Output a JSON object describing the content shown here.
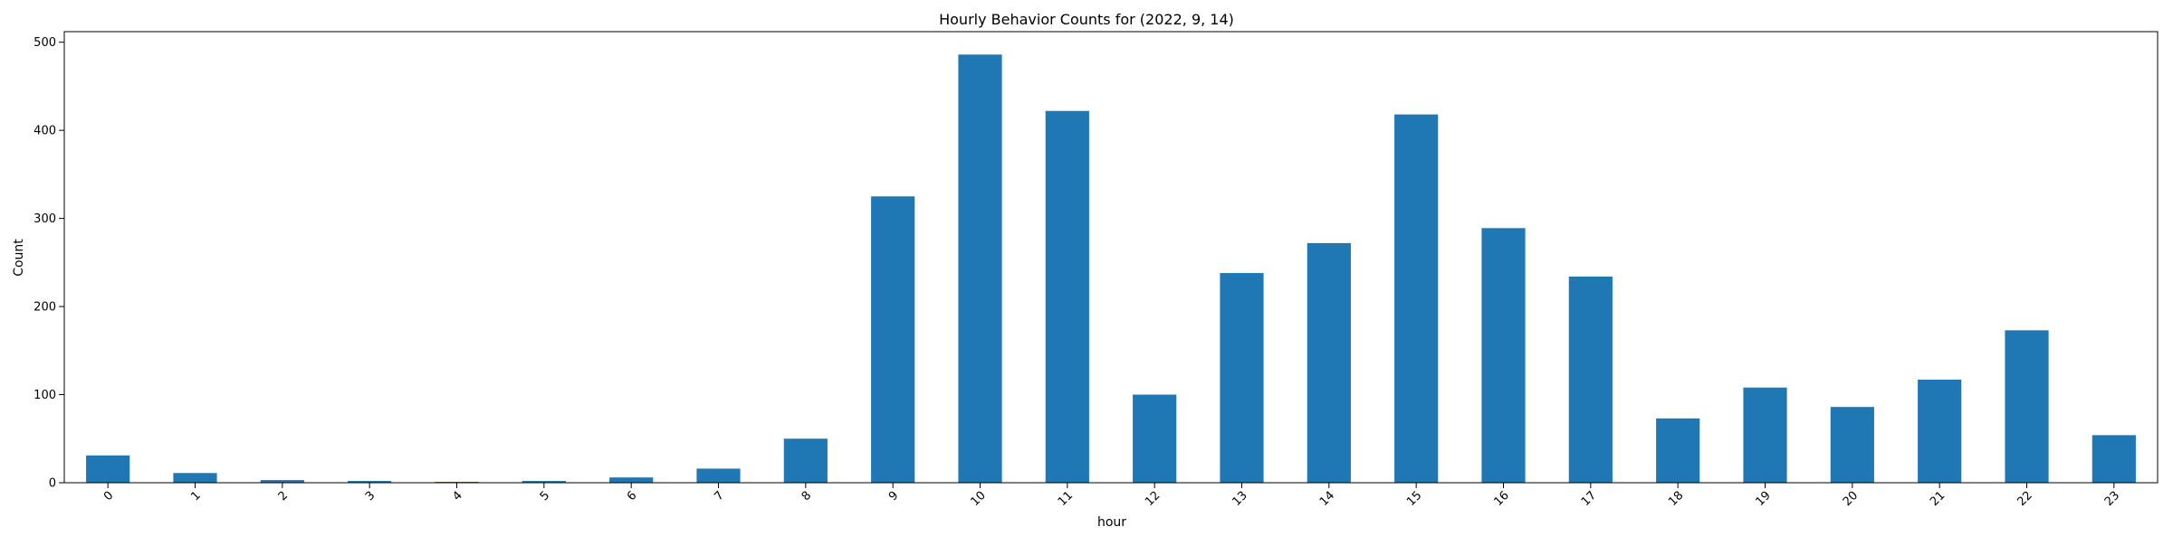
{
  "chart_data": {
    "type": "bar",
    "title": "Hourly Behavior Counts for (2022, 9, 14)",
    "xlabel": "hour",
    "ylabel": "Count",
    "categories": [
      "0",
      "1",
      "2",
      "3",
      "4",
      "5",
      "6",
      "7",
      "8",
      "9",
      "10",
      "11",
      "12",
      "13",
      "14",
      "15",
      "16",
      "17",
      "18",
      "19",
      "20",
      "21",
      "22",
      "23"
    ],
    "values": [
      31,
      11,
      3,
      2,
      1,
      2,
      6,
      16,
      50,
      325,
      486,
      422,
      100,
      238,
      272,
      418,
      289,
      234,
      73,
      108,
      86,
      117,
      173,
      54
    ],
    "ylim": [
      0,
      512
    ],
    "yticks": [
      0,
      100,
      200,
      300,
      400,
      500
    ],
    "bar_color": "#1f77b4",
    "grid": false,
    "legend": "none"
  }
}
